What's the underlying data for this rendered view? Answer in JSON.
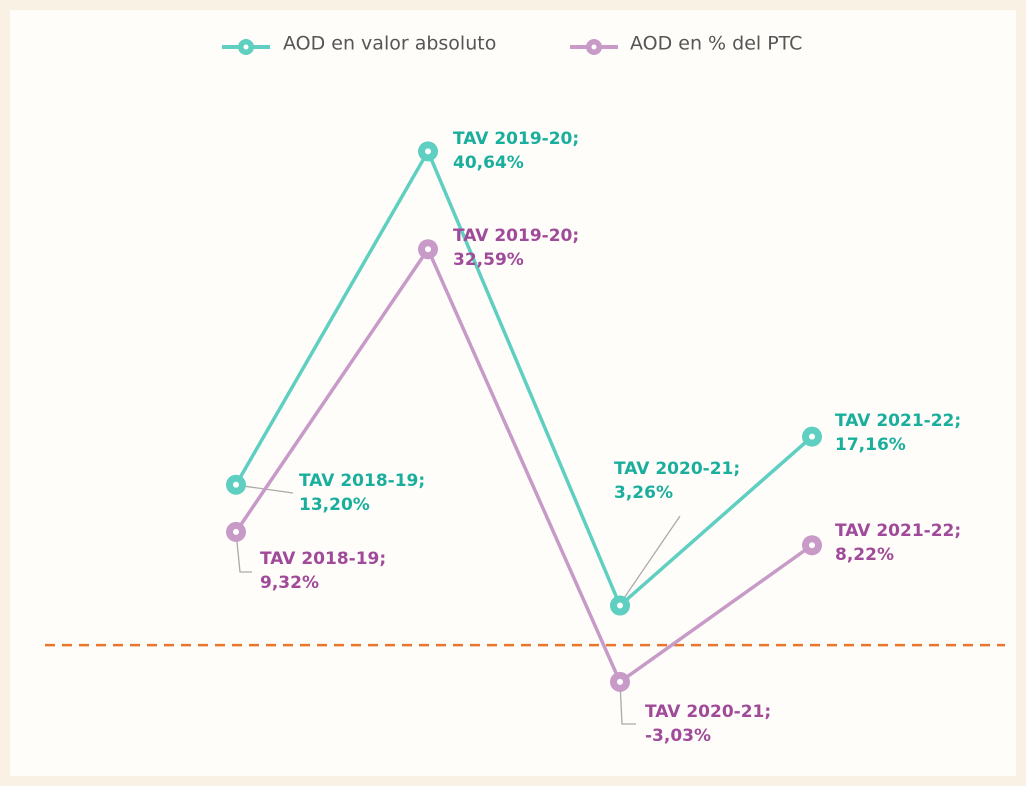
{
  "chart_data": {
    "type": "line",
    "series": [
      {
        "name": "AOD en valor absoluto",
        "color": "#5ecfc0",
        "label_color": "#1aae9c",
        "values": [
          13.2,
          40.64,
          3.26,
          17.16
        ],
        "value_labels": [
          "TAV 2018-19; 13,20%",
          "TAV 2019-20; 40,64%",
          "TAV 2020-21; 3,26%",
          "TAV 2021-22; 17,16%"
        ]
      },
      {
        "name": "AOD en % del PTC",
        "color": "#c79ac8",
        "label_color": "#a04a9a",
        "values": [
          9.32,
          32.59,
          -3.03,
          8.22
        ],
        "value_labels": [
          "TAV 2018-19; 9,32%",
          "TAV 2019-20; 32,59%",
          "TAV 2020-21; -3,03%",
          "TAV 2021-22; 8,22%"
        ]
      }
    ],
    "ylim": [
      -6,
      48
    ]
  }
}
